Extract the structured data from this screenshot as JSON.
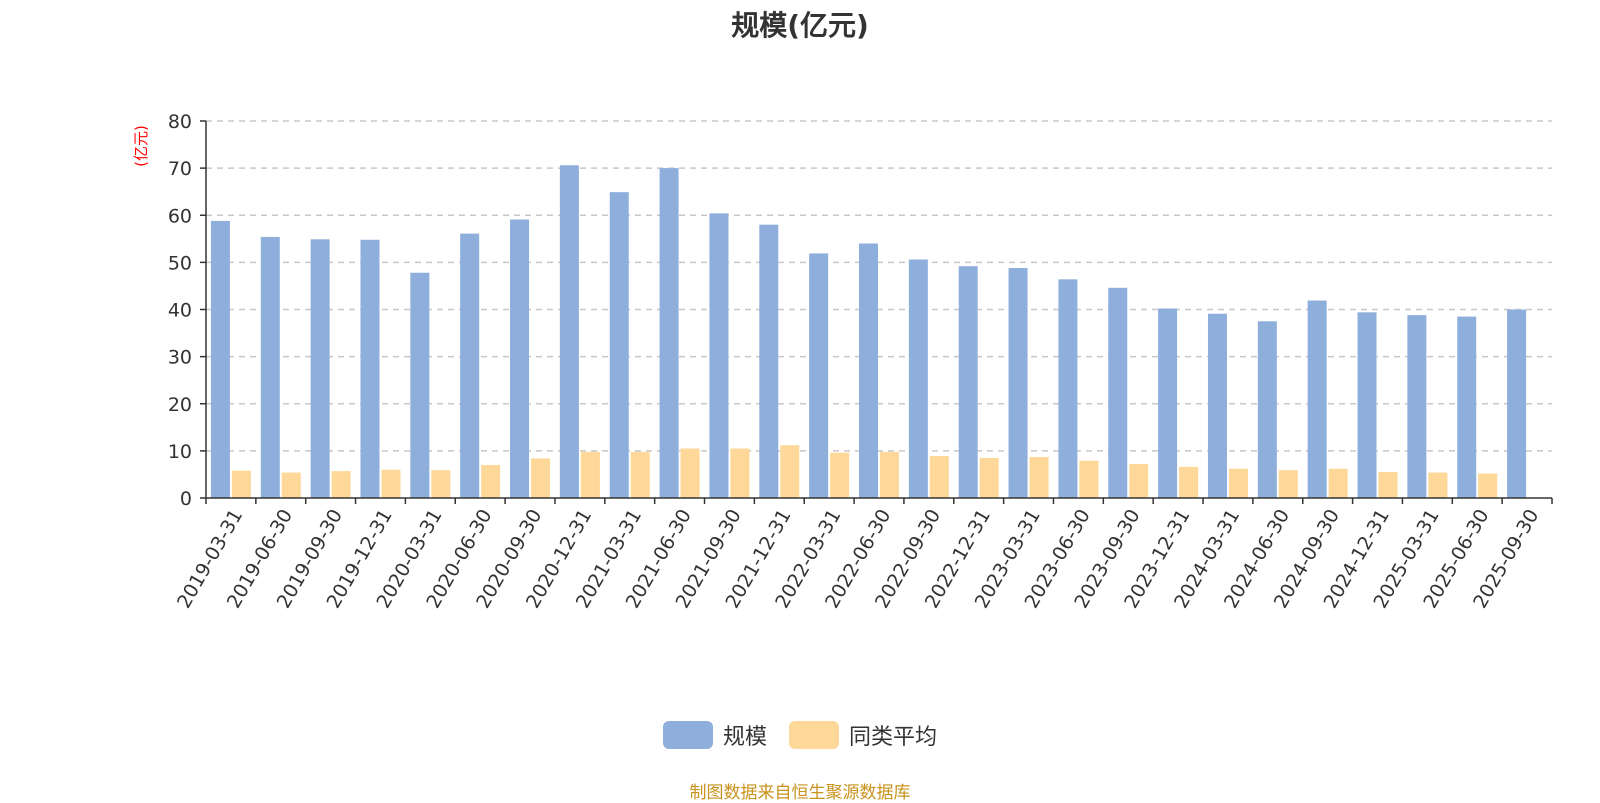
{
  "chart_data": {
    "type": "bar",
    "title": "规模(亿元)",
    "ylabel": "(亿元)",
    "xlabel": "",
    "ylim": [
      0,
      80
    ],
    "yticks": [
      0,
      10,
      20,
      30,
      40,
      50,
      60,
      70,
      80
    ],
    "grid": true,
    "legend_position": "bottom",
    "categories": [
      "2019-03-31",
      "2019-06-30",
      "2019-09-30",
      "2019-12-31",
      "2020-03-31",
      "2020-06-30",
      "2020-09-30",
      "2020-12-31",
      "2021-03-31",
      "2021-06-30",
      "2021-09-30",
      "2021-12-31",
      "2022-03-31",
      "2022-06-30",
      "2022-09-30",
      "2022-12-31",
      "2023-03-31",
      "2023-06-30",
      "2023-09-30",
      "2023-12-31",
      "2024-03-31",
      "2024-06-30",
      "2024-09-30",
      "2024-12-31",
      "2025-03-31",
      "2025-06-30",
      "2025-09-30"
    ],
    "series": [
      {
        "name": "规模",
        "color": "#8eaedb",
        "values": [
          58.8,
          55.4,
          54.9,
          54.8,
          47.8,
          56.1,
          59.1,
          70.6,
          64.9,
          70.0,
          60.4,
          58.0,
          51.9,
          54.0,
          50.6,
          49.2,
          48.8,
          46.4,
          44.6,
          40.2,
          39.1,
          37.5,
          41.9,
          39.4,
          38.8,
          38.5,
          40.0
        ]
      },
      {
        "name": "同类平均",
        "color": "#fdd898",
        "values": [
          5.8,
          5.4,
          5.7,
          6.0,
          5.9,
          7.0,
          8.4,
          9.8,
          9.8,
          10.5,
          10.5,
          11.2,
          9.6,
          9.8,
          8.9,
          8.5,
          8.7,
          7.9,
          7.2,
          6.6,
          6.2,
          5.9,
          6.2,
          5.5,
          5.4,
          5.2,
          null
        ]
      }
    ]
  },
  "footer": "制图数据来自恒生聚源数据库"
}
